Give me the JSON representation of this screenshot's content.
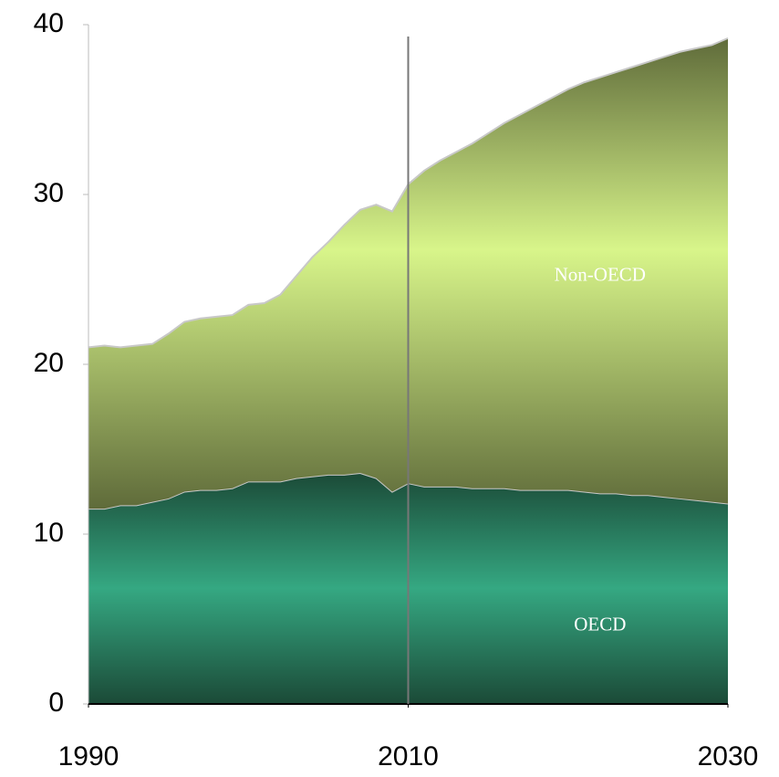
{
  "chart_data": {
    "type": "stacked_area",
    "x": [
      1990,
      1991,
      1992,
      1993,
      1994,
      1995,
      1996,
      1997,
      1998,
      1999,
      2000,
      2001,
      2002,
      2003,
      2004,
      2005,
      2006,
      2007,
      2008,
      2009,
      2010,
      2011,
      2012,
      2013,
      2014,
      2015,
      2016,
      2017,
      2018,
      2019,
      2020,
      2021,
      2022,
      2023,
      2024,
      2025,
      2026,
      2027,
      2028,
      2029,
      2030
    ],
    "series": [
      {
        "name": "OECD",
        "color": "#35a882",
        "values": [
          11.5,
          11.5,
          11.7,
          11.7,
          11.9,
          12.1,
          12.5,
          12.6,
          12.6,
          12.7,
          13.1,
          13.1,
          13.1,
          13.3,
          13.4,
          13.5,
          13.5,
          13.6,
          13.3,
          12.5,
          13.0,
          12.8,
          12.8,
          12.8,
          12.7,
          12.7,
          12.7,
          12.6,
          12.6,
          12.6,
          12.6,
          12.5,
          12.4,
          12.4,
          12.3,
          12.3,
          12.2,
          12.1,
          12.0,
          11.9,
          11.8
        ]
      },
      {
        "name": "Non-OECD",
        "color": "#d8f58a",
        "values": [
          9.5,
          9.6,
          9.3,
          9.4,
          9.3,
          9.7,
          10.0,
          10.1,
          10.2,
          10.2,
          10.4,
          10.5,
          11.0,
          11.9,
          12.9,
          13.7,
          14.7,
          15.5,
          16.1,
          16.5,
          17.6,
          18.6,
          19.2,
          19.7,
          20.3,
          20.9,
          21.5,
          22.1,
          22.6,
          23.1,
          23.6,
          24.1,
          24.5,
          24.8,
          25.2,
          25.5,
          25.9,
          26.3,
          26.6,
          26.9,
          27.4
        ]
      }
    ],
    "xlim": [
      1990,
      2030
    ],
    "xticks": [
      1990,
      2010,
      2030
    ],
    "ylim": [
      0,
      40
    ],
    "yticks": [
      0,
      10,
      20,
      30,
      40
    ],
    "vline": 2010
  }
}
